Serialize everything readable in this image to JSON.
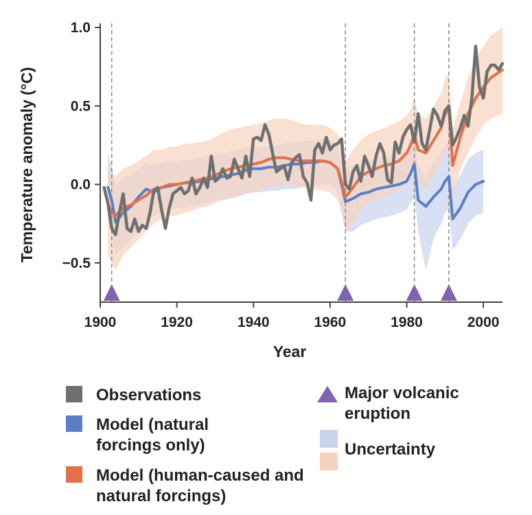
{
  "chart_data": {
    "type": "line",
    "xlabel": "Year",
    "ylabel": "Temperature anomaly (°C)",
    "xlim": [
      1900,
      2005
    ],
    "ylim": [
      -0.75,
      1.0
    ],
    "x_ticks": [
      1900,
      1920,
      1940,
      1960,
      1980,
      2000
    ],
    "y_ticks": [
      1.0,
      0.5,
      0.0,
      -0.5
    ],
    "y_tick_labels": [
      "1.0",
      "0.5",
      "0.0",
      "−0.5"
    ],
    "volcanic_eruptions": [
      1903,
      1964,
      1982,
      1991
    ],
    "series": [
      {
        "name": "Model (natural forcings only)",
        "color": "#5b7fc4",
        "band_color": "#c9d3ee",
        "x": [
          1902,
          1903,
          1904,
          1906,
          1908,
          1910,
          1912,
          1914,
          1916,
          1918,
          1920,
          1922,
          1924,
          1926,
          1928,
          1930,
          1932,
          1934,
          1936,
          1938,
          1940,
          1942,
          1944,
          1946,
          1948,
          1950,
          1952,
          1954,
          1956,
          1958,
          1960,
          1962,
          1963,
          1964,
          1966,
          1968,
          1970,
          1972,
          1974,
          1976,
          1978,
          1980,
          1981,
          1982,
          1983,
          1985,
          1987,
          1989,
          1990,
          1991,
          1992,
          1994,
          1996,
          1998,
          2000
        ],
        "values": [
          -0.02,
          -0.1,
          -0.24,
          -0.18,
          -0.14,
          -0.08,
          -0.03,
          -0.05,
          -0.02,
          -0.01,
          0.0,
          0.01,
          0.01,
          0.02,
          0.03,
          0.04,
          0.05,
          0.06,
          0.07,
          0.09,
          0.1,
          0.1,
          0.11,
          0.11,
          0.12,
          0.13,
          0.13,
          0.14,
          0.14,
          0.15,
          0.14,
          0.1,
          0.0,
          -0.11,
          -0.09,
          -0.06,
          -0.05,
          -0.03,
          -0.02,
          -0.01,
          0.0,
          0.02,
          0.07,
          0.13,
          -0.1,
          -0.14,
          -0.08,
          -0.03,
          0.02,
          0.05,
          -0.22,
          -0.15,
          -0.05,
          0.0,
          0.02
        ],
        "lower": [
          -0.22,
          -0.32,
          -0.45,
          -0.4,
          -0.35,
          -0.3,
          -0.22,
          -0.2,
          -0.18,
          -0.16,
          -0.15,
          -0.15,
          -0.14,
          -0.13,
          -0.12,
          -0.1,
          -0.1,
          -0.09,
          -0.08,
          -0.06,
          -0.05,
          -0.05,
          -0.04,
          -0.04,
          -0.03,
          -0.03,
          -0.02,
          -0.01,
          -0.01,
          0.0,
          0.0,
          -0.05,
          -0.18,
          -0.3,
          -0.3,
          -0.26,
          -0.24,
          -0.22,
          -0.21,
          -0.2,
          -0.18,
          -0.16,
          -0.12,
          -0.08,
          -0.3,
          -0.55,
          -0.35,
          -0.25,
          -0.18,
          -0.16,
          -0.42,
          -0.35,
          -0.25,
          -0.2,
          -0.18
        ],
        "upper": [
          0.2,
          0.12,
          0.0,
          0.04,
          0.06,
          0.1,
          0.14,
          0.12,
          0.14,
          0.15,
          0.15,
          0.16,
          0.16,
          0.17,
          0.18,
          0.19,
          0.2,
          0.21,
          0.22,
          0.23,
          0.24,
          0.24,
          0.25,
          0.25,
          0.26,
          0.27,
          0.27,
          0.28,
          0.28,
          0.29,
          0.28,
          0.24,
          0.14,
          0.1,
          0.12,
          0.14,
          0.15,
          0.17,
          0.18,
          0.19,
          0.2,
          0.22,
          0.26,
          0.32,
          0.12,
          0.05,
          0.15,
          0.2,
          0.25,
          0.28,
          -0.02,
          0.06,
          0.16,
          0.2,
          0.22
        ]
      },
      {
        "name": "Model (human-caused and natural forcings)",
        "color": "#e2704a",
        "band_color": "#f7d3be",
        "x": [
          1902,
          1903,
          1904,
          1906,
          1908,
          1910,
          1912,
          1914,
          1916,
          1918,
          1920,
          1922,
          1924,
          1926,
          1928,
          1930,
          1932,
          1934,
          1936,
          1938,
          1940,
          1942,
          1944,
          1946,
          1948,
          1950,
          1952,
          1954,
          1956,
          1958,
          1960,
          1962,
          1963,
          1964,
          1966,
          1968,
          1970,
          1972,
          1974,
          1976,
          1978,
          1980,
          1981,
          1982,
          1983,
          1985,
          1987,
          1989,
          1990,
          1991,
          1992,
          1994,
          1996,
          1998,
          2000,
          2002,
          2005
        ],
        "values": [
          -0.12,
          -0.18,
          -0.2,
          -0.15,
          -0.13,
          -0.1,
          -0.07,
          -0.03,
          -0.02,
          0.0,
          0.0,
          0.01,
          0.02,
          0.03,
          0.04,
          0.06,
          0.08,
          0.1,
          0.11,
          0.12,
          0.13,
          0.14,
          0.16,
          0.17,
          0.17,
          0.16,
          0.15,
          0.15,
          0.15,
          0.15,
          0.14,
          0.1,
          0.02,
          -0.08,
          -0.02,
          0.05,
          0.08,
          0.1,
          0.12,
          0.13,
          0.15,
          0.2,
          0.25,
          0.32,
          0.22,
          0.2,
          0.28,
          0.36,
          0.45,
          0.48,
          0.12,
          0.3,
          0.45,
          0.55,
          0.62,
          0.68,
          0.73
        ],
        "lower": [
          -0.45,
          -0.5,
          -0.55,
          -0.45,
          -0.4,
          -0.35,
          -0.3,
          -0.25,
          -0.22,
          -0.2,
          -0.2,
          -0.18,
          -0.17,
          -0.15,
          -0.14,
          -0.12,
          -0.1,
          -0.08,
          -0.07,
          -0.06,
          -0.05,
          -0.04,
          -0.02,
          -0.01,
          0.0,
          0.0,
          -0.02,
          -0.02,
          -0.03,
          -0.04,
          -0.05,
          -0.1,
          -0.18,
          -0.3,
          -0.25,
          -0.15,
          -0.12,
          -0.1,
          -0.08,
          -0.06,
          -0.04,
          0.0,
          0.05,
          0.1,
          0.0,
          -0.02,
          0.06,
          0.14,
          0.22,
          0.25,
          -0.1,
          0.1,
          0.2,
          0.3,
          0.38,
          0.42,
          0.45
        ],
        "upper": [
          0.15,
          0.08,
          0.05,
          0.1,
          0.12,
          0.15,
          0.18,
          0.22,
          0.22,
          0.24,
          0.24,
          0.26,
          0.26,
          0.27,
          0.28,
          0.3,
          0.33,
          0.35,
          0.36,
          0.37,
          0.38,
          0.39,
          0.41,
          0.42,
          0.42,
          0.41,
          0.39,
          0.38,
          0.38,
          0.38,
          0.36,
          0.32,
          0.25,
          0.15,
          0.22,
          0.28,
          0.32,
          0.34,
          0.36,
          0.38,
          0.4,
          0.44,
          0.48,
          0.55,
          0.45,
          0.42,
          0.5,
          0.58,
          0.68,
          0.7,
          0.35,
          0.52,
          0.68,
          0.8,
          0.88,
          0.95,
          1.0
        ]
      },
      {
        "name": "Observations",
        "color": "#6f6f6f",
        "x": [
          1901,
          1902,
          1903,
          1904,
          1905,
          1906,
          1907,
          1908,
          1909,
          1910,
          1911,
          1912,
          1913,
          1914,
          1915,
          1916,
          1917,
          1918,
          1919,
          1920,
          1921,
          1922,
          1923,
          1924,
          1925,
          1926,
          1927,
          1928,
          1929,
          1930,
          1931,
          1932,
          1933,
          1934,
          1935,
          1936,
          1937,
          1938,
          1939,
          1940,
          1941,
          1942,
          1943,
          1944,
          1945,
          1946,
          1947,
          1948,
          1949,
          1950,
          1951,
          1952,
          1953,
          1954,
          1955,
          1956,
          1957,
          1958,
          1959,
          1960,
          1961,
          1962,
          1963,
          1964,
          1965,
          1966,
          1967,
          1968,
          1969,
          1970,
          1971,
          1972,
          1973,
          1974,
          1975,
          1976,
          1977,
          1978,
          1979,
          1980,
          1981,
          1982,
          1983,
          1984,
          1985,
          1986,
          1987,
          1988,
          1989,
          1990,
          1991,
          1992,
          1993,
          1994,
          1995,
          1996,
          1997,
          1998,
          1999,
          2000,
          2001,
          2002,
          2003,
          2004,
          2005
        ],
        "values": [
          -0.02,
          -0.12,
          -0.28,
          -0.32,
          -0.18,
          -0.06,
          -0.28,
          -0.3,
          -0.22,
          -0.3,
          -0.26,
          -0.28,
          -0.18,
          -0.04,
          -0.02,
          -0.16,
          -0.28,
          -0.15,
          -0.06,
          -0.04,
          -0.02,
          -0.06,
          -0.04,
          0.04,
          -0.06,
          -0.02,
          0.04,
          -0.02,
          0.18,
          0.02,
          0.04,
          0.1,
          0.04,
          0.05,
          0.16,
          0.1,
          0.04,
          0.18,
          0.05,
          0.29,
          0.3,
          0.28,
          0.38,
          0.32,
          0.2,
          0.08,
          0.1,
          0.12,
          0.03,
          0.14,
          0.17,
          0.19,
          0.05,
          0.01,
          -0.1,
          0.22,
          0.26,
          0.2,
          0.3,
          0.22,
          0.25,
          0.26,
          0.29,
          0.0,
          -0.03,
          0.08,
          0.12,
          0.02,
          0.18,
          0.12,
          0.05,
          0.18,
          0.26,
          0.2,
          0.03,
          0.01,
          0.27,
          0.2,
          0.3,
          0.35,
          0.38,
          0.27,
          0.45,
          0.26,
          0.22,
          0.35,
          0.48,
          0.44,
          0.37,
          0.47,
          0.5,
          0.25,
          0.3,
          0.36,
          0.44,
          0.37,
          0.55,
          0.88,
          0.62,
          0.55,
          0.72,
          0.76,
          0.76,
          0.73,
          0.77
        ]
      }
    ]
  },
  "legend": {
    "observations": "Observations",
    "natural": "Model (natural forcings only)",
    "human": "Model (human-caused and natural forcings)",
    "volcanic": "Major volcanic eruption",
    "uncertainty": "Uncertainty"
  },
  "colors": {
    "observations": "#6f6f6f",
    "natural": "#5b7fc4",
    "human": "#e2704a",
    "volcanic": "#7f63b0",
    "uncertainty_blue": "#c9d3ee",
    "uncertainty_orange": "#f7d3be"
  }
}
